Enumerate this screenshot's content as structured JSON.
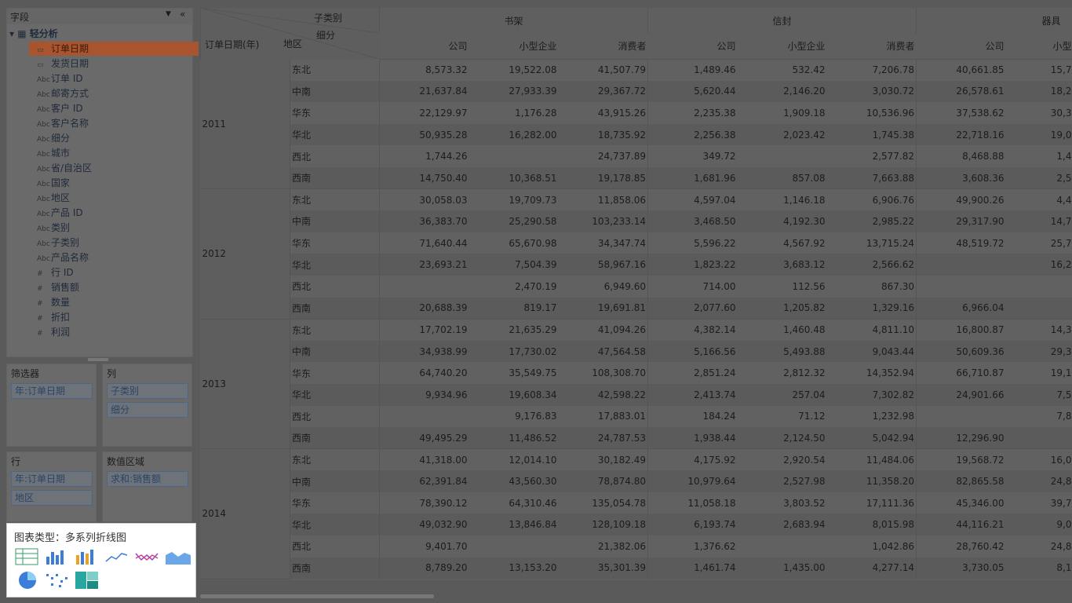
{
  "sidebar": {
    "fields_title": "字段",
    "root": "轻分析",
    "date_fields": [
      "订单日期",
      "发货日期"
    ],
    "fields": [
      {
        "badge": "Abc",
        "name": "订单 ID"
      },
      {
        "badge": "Abc",
        "name": "邮寄方式"
      },
      {
        "badge": "Abc",
        "name": "客户 ID"
      },
      {
        "badge": "Abc",
        "name": "客户名称"
      },
      {
        "badge": "Abc",
        "name": "细分"
      },
      {
        "badge": "Abc",
        "name": "城市"
      },
      {
        "badge": "Abc",
        "name": "省/自治区"
      },
      {
        "badge": "Abc",
        "name": "国家"
      },
      {
        "badge": "Abc",
        "name": "地区"
      },
      {
        "badge": "Abc",
        "name": "产品 ID"
      },
      {
        "badge": "Abc",
        "name": "类别"
      },
      {
        "badge": "Abc",
        "name": "子类别"
      },
      {
        "badge": "Abc",
        "name": "产品名称"
      },
      {
        "badge": "#",
        "name": "行 ID"
      },
      {
        "badge": "#",
        "name": "销售额"
      },
      {
        "badge": "#",
        "name": "数量"
      },
      {
        "badge": "#",
        "name": "折扣"
      },
      {
        "badge": "#",
        "name": "利润"
      }
    ]
  },
  "shelves": [
    {
      "title": "筛选器",
      "items": [
        "年:订单日期"
      ]
    },
    {
      "title": "列",
      "items": [
        "子类别",
        "细分"
      ]
    },
    {
      "title": "行",
      "items": [
        "年:订单日期",
        "地区"
      ]
    },
    {
      "title": "数值区域",
      "items": [
        "求和:销售额"
      ]
    }
  ],
  "chart_picker": {
    "title": "图表类型：多系列折线图"
  },
  "table": {
    "corner": {
      "column_field": "子类别",
      "column_field2": "细分",
      "row_field": "订单日期(年)",
      "row_field2": "地区"
    },
    "groups": [
      {
        "name": "书架",
        "segments": [
          "公司",
          "小型企业",
          "消费者"
        ]
      },
      {
        "name": "信封",
        "segments": [
          "公司",
          "小型企业",
          "消费者"
        ]
      },
      {
        "name": "器具",
        "segments": [
          "公司",
          "小型"
        ]
      }
    ],
    "years": [
      {
        "year": "2011",
        "rows": [
          {
            "region": "东北",
            "cells": [
              "8,573.32",
              "19,522.08",
              "41,507.79",
              "1,489.46",
              "532.42",
              "7,206.78",
              "40,661.85",
              "15,7"
            ]
          },
          {
            "region": "中南",
            "cells": [
              "21,637.84",
              "27,933.39",
              "29,367.72",
              "5,620.44",
              "2,146.20",
              "3,030.72",
              "26,578.61",
              "18,2"
            ]
          },
          {
            "region": "华东",
            "cells": [
              "22,129.97",
              "1,176.28",
              "43,915.26",
              "2,235.38",
              "1,909.18",
              "10,536.96",
              "37,538.62",
              "30,3"
            ]
          },
          {
            "region": "华北",
            "cells": [
              "50,935.28",
              "16,282.00",
              "18,735.92",
              "2,256.38",
              "2,023.42",
              "1,745.38",
              "22,718.16",
              "19,0"
            ]
          },
          {
            "region": "西北",
            "cells": [
              "1,744.26",
              null,
              "24,737.89",
              "349.72",
              null,
              "2,577.82",
              "8,468.88",
              "1,4"
            ]
          },
          {
            "region": "西南",
            "cells": [
              "14,750.40",
              "10,368.51",
              "19,178.85",
              "1,681.96",
              "857.08",
              "7,663.88",
              "3,608.36",
              "2,5"
            ]
          }
        ]
      },
      {
        "year": "2012",
        "rows": [
          {
            "region": "东北",
            "cells": [
              "30,058.03",
              "19,709.73",
              "11,858.06",
              "4,597.04",
              "1,146.18",
              "6,906.76",
              "49,900.26",
              "4,4"
            ]
          },
          {
            "region": "中南",
            "cells": [
              "36,383.70",
              "25,290.58",
              "103,233.14",
              "3,468.50",
              "4,192.30",
              "2,985.22",
              "29,317.90",
              "14,7"
            ]
          },
          {
            "region": "华东",
            "cells": [
              "71,640.44",
              "65,670.98",
              "34,347.74",
              "5,596.22",
              "4,567.92",
              "13,715.24",
              "48,519.72",
              "25,7"
            ]
          },
          {
            "region": "华北",
            "cells": [
              "23,693.21",
              "7,504.39",
              "58,967.16",
              "1,823.22",
              "3,683.12",
              "2,566.62",
              null,
              "16,2"
            ]
          },
          {
            "region": "西北",
            "cells": [
              null,
              "2,470.19",
              "6,949.60",
              "714.00",
              "112.56",
              "867.30",
              null,
              null
            ]
          },
          {
            "region": "西南",
            "cells": [
              "20,688.39",
              "819.17",
              "19,691.81",
              "2,077.60",
              "1,205.82",
              "1,329.16",
              "6,966.04",
              null
            ]
          }
        ]
      },
      {
        "year": "2013",
        "rows": [
          {
            "region": "东北",
            "cells": [
              "17,702.19",
              "21,635.29",
              "41,094.26",
              "4,382.14",
              "1,460.48",
              "4,811.10",
              "16,800.87",
              "14,3"
            ]
          },
          {
            "region": "中南",
            "cells": [
              "34,938.99",
              "17,730.02",
              "47,564.58",
              "5,166.56",
              "5,493.88",
              "9,043.44",
              "50,609.36",
              "29,3"
            ]
          },
          {
            "region": "华东",
            "cells": [
              "64,740.20",
              "35,549.75",
              "108,308.70",
              "2,851.24",
              "2,812.32",
              "14,352.94",
              "66,710.87",
              "19,1"
            ]
          },
          {
            "region": "华北",
            "cells": [
              "9,934.96",
              "19,608.34",
              "42,598.22",
              "2,413.74",
              "257.04",
              "7,302.82",
              "24,901.66",
              "7,5"
            ]
          },
          {
            "region": "西北",
            "cells": [
              null,
              "9,176.83",
              "17,883.01",
              "184.24",
              "71.12",
              "1,232.98",
              null,
              "7,8"
            ]
          },
          {
            "region": "西南",
            "cells": [
              "49,495.29",
              "11,486.52",
              "24,787.53",
              "1,938.44",
              "2,124.50",
              "5,042.94",
              "12,296.90",
              null
            ]
          }
        ]
      },
      {
        "year": "2014",
        "rows": [
          {
            "region": "东北",
            "cells": [
              "41,318.00",
              "12,014.10",
              "30,182.49",
              "4,175.92",
              "2,920.54",
              "11,484.06",
              "19,568.72",
              "16,0"
            ]
          },
          {
            "region": "中南",
            "cells": [
              "62,391.84",
              "43,560.30",
              "78,874.80",
              "10,979.64",
              "2,527.98",
              "11,358.20",
              "82,865.58",
              "24,8"
            ]
          },
          {
            "region": "华东",
            "cells": [
              "78,390.12",
              "64,310.46",
              "135,054.78",
              "11,058.18",
              "3,803.52",
              "17,111.36",
              "45,346.00",
              "39,7"
            ]
          },
          {
            "region": "华北",
            "cells": [
              "49,032.90",
              "13,846.84",
              "128,109.18",
              "6,193.74",
              "2,683.94",
              "8,015.98",
              "44,116.21",
              "9,0"
            ]
          },
          {
            "region": "西北",
            "cells": [
              "9,401.70",
              null,
              "21,382.06",
              "1,376.62",
              null,
              "1,042.86",
              "28,760.42",
              "24,8"
            ]
          },
          {
            "region": "西南",
            "cells": [
              "8,789.20",
              "13,153.20",
              "35,301.39",
              "1,461.74",
              "1,435.00",
              "4,277.14",
              "3,730.05",
              "8,1"
            ]
          }
        ]
      }
    ]
  }
}
